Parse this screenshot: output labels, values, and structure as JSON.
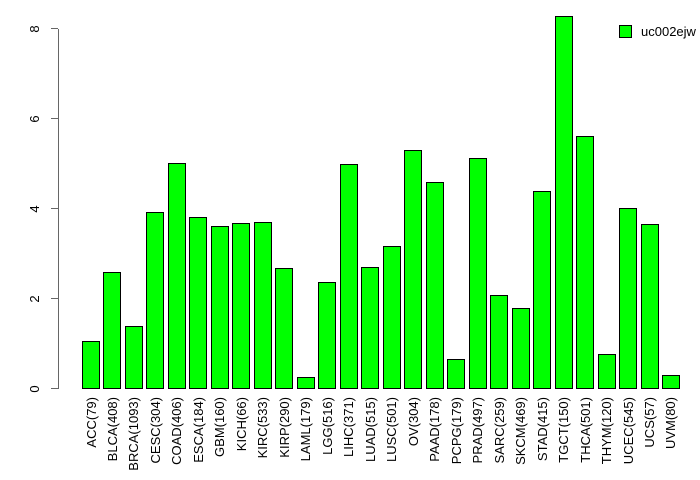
{
  "chart_data": {
    "type": "bar",
    "title": "",
    "xlabel": "",
    "ylabel": "",
    "categories": [
      "ACC(79)",
      "BLCA(408)",
      "BRCA(1093)",
      "CESC(304)",
      "COAD(406)",
      "ESCA(184)",
      "GBM(160)",
      "KICH(66)",
      "KIRC(533)",
      "KIRP(290)",
      "LAML(179)",
      "LGG(516)",
      "LIHC(371)",
      "LUAD(515)",
      "LUSC(501)",
      "OV(304)",
      "PAAD(178)",
      "PCPG(179)",
      "PRAD(497)",
      "SARC(259)",
      "SKCM(469)",
      "STAD(415)",
      "TGCT(150)",
      "THCA(501)",
      "THYM(120)",
      "UCEC(545)",
      "UCS(57)",
      "UVM(80)"
    ],
    "values": [
      1.06,
      2.61,
      1.39,
      3.94,
      5.03,
      3.83,
      3.63,
      3.68,
      3.72,
      2.7,
      0.26,
      2.37,
      5.01,
      2.72,
      3.17,
      5.32,
      4.59,
      0.66,
      5.14,
      2.08,
      1.8,
      4.39,
      8.28,
      5.63,
      0.77,
      4.03,
      3.66,
      0.32
    ],
    "series_name": "uc002ejw",
    "legend": {
      "label": "uc002ejw",
      "position": "top-right"
    },
    "ylim": [
      0,
      8
    ],
    "yticks": [
      0,
      2,
      4,
      6,
      8
    ],
    "grid": false,
    "colors": {
      "bar_fill": "#00ff00",
      "bar_border": "#000000",
      "axis": "#666666",
      "text": "#000000",
      "background": "#ffffff"
    }
  }
}
